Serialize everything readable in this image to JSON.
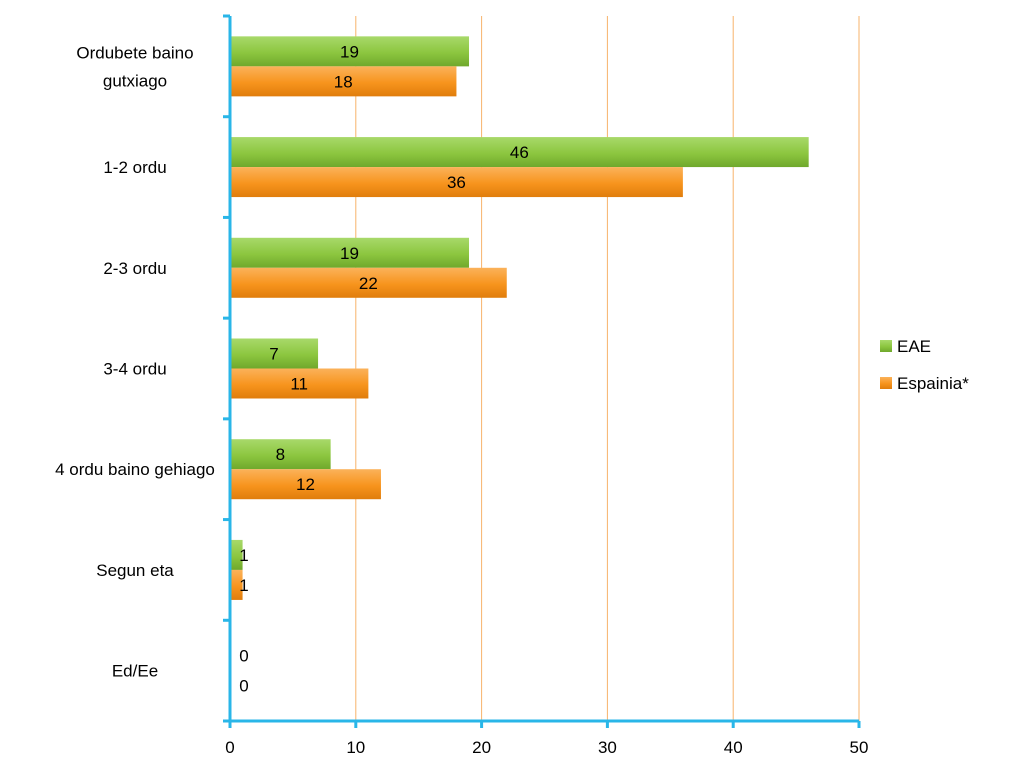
{
  "chart_data": {
    "type": "bar",
    "orientation": "horizontal",
    "categories": [
      [
        "Ordubete baino",
        "gutxiago"
      ],
      [
        "1-2 ordu"
      ],
      [
        "2-3 ordu"
      ],
      [
        "3-4 ordu"
      ],
      [
        "4 ordu baino gehiago"
      ],
      [
        "Segun eta"
      ],
      [
        "Ed/Ee"
      ]
    ],
    "series": [
      {
        "name": "EAE",
        "values": [
          19,
          46,
          19,
          7,
          8,
          1,
          0
        ],
        "color": "#8cc63f"
      },
      {
        "name": "Espainia*",
        "values": [
          18,
          36,
          22,
          11,
          12,
          1,
          0
        ],
        "color": "#f7941d"
      }
    ],
    "xlim": [
      0,
      50
    ],
    "xticks": [
      "0",
      "10",
      "20",
      "30",
      "40",
      "50"
    ],
    "grid": "vertical",
    "grid_color": "#f7b36b",
    "axis_color": "#29b6e8",
    "legend": "right",
    "data_labels": true
  }
}
